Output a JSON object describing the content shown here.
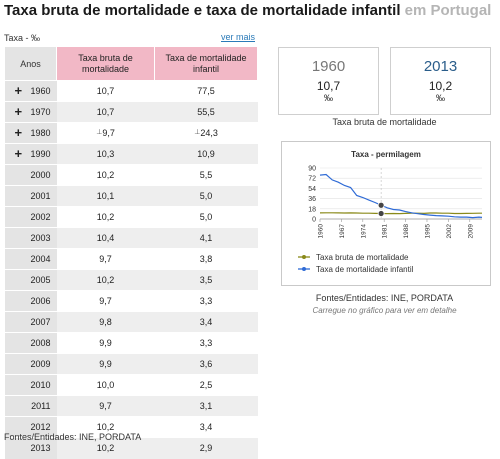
{
  "title": {
    "main": "Taxa bruta de mortalidade e taxa de mortalidade infantil",
    "suffix": "em Portugal"
  },
  "unit_label": "Taxa - ‰",
  "ver_mais": "ver mais",
  "table": {
    "headers": {
      "years": "Anos",
      "col1": "Taxa bruta de mortalidade",
      "col2": "Taxa de mortalidade infantil"
    },
    "rows": [
      {
        "year": "1960",
        "expand": "+",
        "v1": "10,7",
        "v2": "77,5"
      },
      {
        "year": "1970",
        "expand": "+",
        "v1": "10,7",
        "v2": "55,5"
      },
      {
        "year": "1980",
        "expand": "+",
        "v1": "9,7",
        "m1": "⊥",
        "v2": "24,3",
        "m2": "⊥"
      },
      {
        "year": "1990",
        "expand": "+",
        "v1": "10,3",
        "v2": "10,9"
      },
      {
        "year": "2000",
        "v1": "10,2",
        "v2": "5,5"
      },
      {
        "year": "2001",
        "v1": "10,1",
        "v2": "5,0"
      },
      {
        "year": "2002",
        "v1": "10,2",
        "v2": "5,0"
      },
      {
        "year": "2003",
        "v1": "10,4",
        "v2": "4,1"
      },
      {
        "year": "2004",
        "v1": "9,7",
        "v2": "3,8"
      },
      {
        "year": "2005",
        "v1": "10,2",
        "v2": "3,5"
      },
      {
        "year": "2006",
        "v1": "9,7",
        "v2": "3,3"
      },
      {
        "year": "2007",
        "v1": "9,8",
        "v2": "3,4"
      },
      {
        "year": "2008",
        "v1": "9,9",
        "v2": "3,3"
      },
      {
        "year": "2009",
        "v1": "9,9",
        "v2": "3,6"
      },
      {
        "year": "2010",
        "v1": "10,0",
        "v2": "2,5"
      },
      {
        "year": "2011",
        "v1": "9,7",
        "v2": "3,1"
      },
      {
        "year": "2012",
        "v1": "10,2",
        "v2": "3,4"
      },
      {
        "year": "2013",
        "v1": "10,2",
        "v2": "2,9"
      }
    ]
  },
  "footer": "Fontes/Entidades: INE, PORDATA",
  "cards": [
    {
      "year": "1960",
      "value": "10,7",
      "unit": "‰",
      "year_color": "#777777"
    },
    {
      "year": "2013",
      "value": "10,2",
      "unit": "‰",
      "year_color": "#2a5d8a"
    }
  ],
  "cards_caption": "Taxa bruta de mortalidade",
  "chart_data": {
    "type": "line",
    "title": "Taxa - permilagem",
    "ylim": [
      0,
      90
    ],
    "yticks": [
      "90",
      "72",
      "54",
      "36",
      "18",
      "0"
    ],
    "xticks": [
      "1960",
      "1967",
      "1974",
      "1981",
      "1988",
      "1995",
      "2002",
      "2009"
    ],
    "x": [
      1960,
      1962,
      1964,
      1966,
      1968,
      1970,
      1972,
      1974,
      1976,
      1978,
      1980,
      1982,
      1984,
      1986,
      1988,
      1990,
      1992,
      1994,
      1996,
      1998,
      2000,
      2002,
      2004,
      2006,
      2008,
      2010,
      2012,
      2013
    ],
    "series": [
      {
        "name": "Taxa bruta de mortalidade",
        "color": "#8a8a1a",
        "values": [
          10.7,
          10.9,
          11.0,
          10.8,
          10.6,
          10.7,
          10.5,
          10.3,
          10.2,
          9.9,
          9.7,
          9.6,
          9.7,
          9.6,
          9.8,
          10.3,
          10.2,
          9.9,
          10.6,
          10.5,
          10.2,
          10.2,
          9.7,
          9.7,
          9.9,
          10.0,
          10.2,
          10.2
        ]
      },
      {
        "name": "Taxa de mortalidade infantil",
        "color": "#2f6bd6",
        "values": [
          77.5,
          78.6,
          69.0,
          64.9,
          59.2,
          55.5,
          41.4,
          37.9,
          33.4,
          29.1,
          24.3,
          19.8,
          16.7,
          15.8,
          13.1,
          10.9,
          9.3,
          7.9,
          6.9,
          6.0,
          5.5,
          5.0,
          3.8,
          3.3,
          3.3,
          2.5,
          3.4,
          2.9
        ]
      }
    ],
    "highlight_x": 1980,
    "legend_position": "bottom"
  },
  "chart_source": "Fontes/Entidades: INE, PORDATA",
  "chart_hint": "Carregue no gráfico para ver em detalhe"
}
